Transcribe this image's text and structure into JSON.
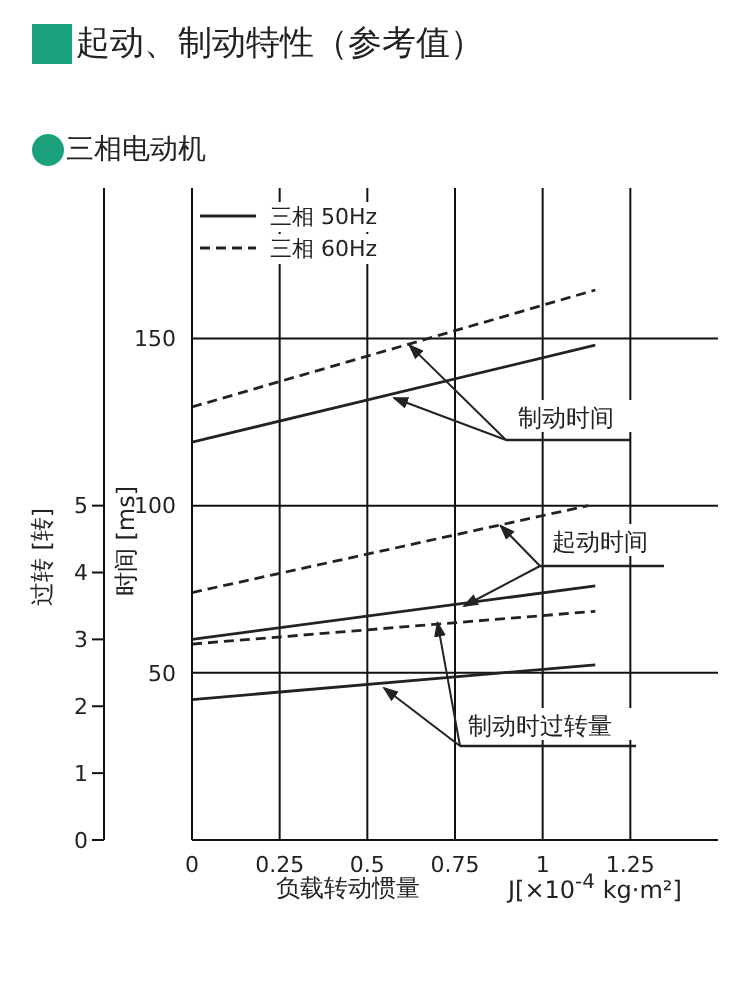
{
  "chart_data": {
    "type": "line",
    "title": "起动、制动特性（参考值）",
    "subtitle": "三相电动机",
    "xlabel": "负载转动惯量",
    "ylabel": "时间 [ms]",
    "y2label": "过转 [转]",
    "annotations": [
      {
        "text": "制动时间",
        "x": 0.62,
        "y": 148
      },
      {
        "text": "起动时间",
        "x": 0.88,
        "y": 94
      },
      {
        "text": "制动时过转量",
        "x": 0.7,
        "y": 65
      },
      "J[×10$^{-4}$ kg·m²]"
    ],
    "xlim": [
      0,
      1.5
    ],
    "xticks": [
      0,
      0.25,
      0.5,
      0.75,
      1,
      1.25
    ],
    "ylim": [
      0,
      195
    ],
    "yticks": [
      50,
      100,
      150
    ],
    "y2lim": [
      0,
      9.75
    ],
    "y2ticks": [
      0,
      1,
      2,
      3,
      4,
      5
    ],
    "grid": true,
    "legend": "top left",
    "series": [
      {
        "name": "三相 50Hz",
        "color": "#222222",
        "line_style": "solid",
        "x": [
          0,
          1.15
        ],
        "values": [
          119,
          148
        ]
      },
      {
        "name": "三相 60Hz",
        "color": "#222222",
        "line_style": "dashed",
        "x": [
          0,
          1.15
        ],
        "values": [
          129.5,
          164.5
        ]
      },
      {
        "color": "#222222",
        "line_style": "solid",
        "x": [
          0,
          1.15
        ],
        "values": [
          60,
          76
        ]
      },
      {
        "color": "#222222",
        "line_style": "dashed",
        "x": [
          0,
          1.13
        ],
        "values": [
          74,
          100
        ]
      },
      {
        "color": "#222222",
        "line_style": "solid",
        "axis": "y2",
        "x": [
          0,
          1.15
        ],
        "values": [
          2.1,
          2.62
        ]
      },
      {
        "color": "#222222",
        "line_style": "dashed",
        "axis": "y2",
        "x": [
          0,
          1.15
        ],
        "values": [
          2.93,
          3.42
        ]
      }
    ]
  }
}
